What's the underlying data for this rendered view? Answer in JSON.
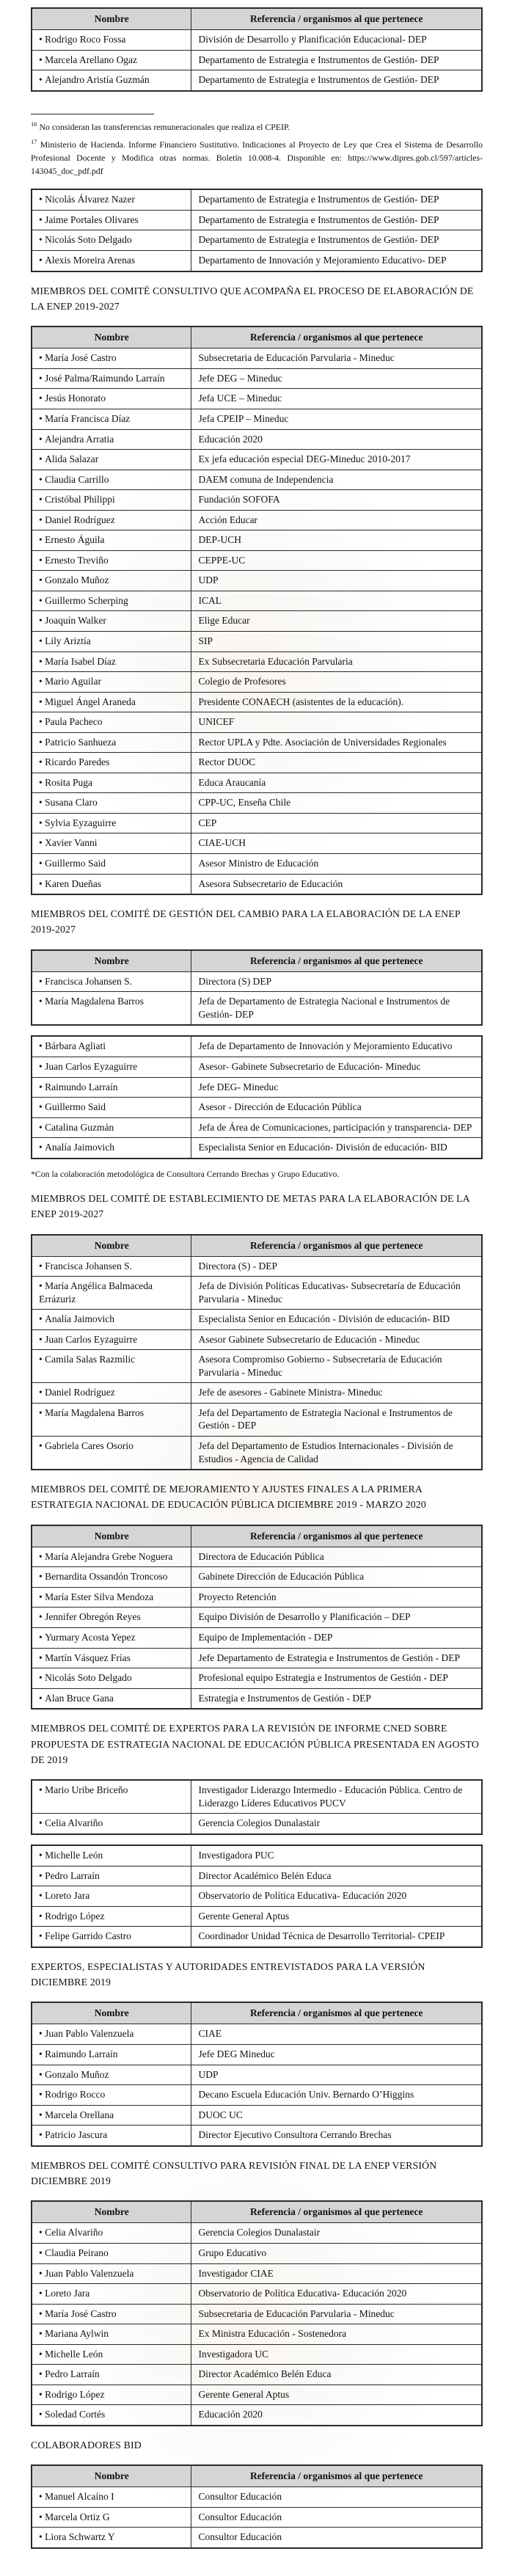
{
  "table_columns": [
    "Nombre",
    "Referencia / organismos al que pertenece"
  ],
  "sections": [
    {
      "type": "table",
      "header": true,
      "rows": [
        {
          "name": "Rodrigo Roco Fossa",
          "ref": "División de Desarrollo y Planificación Educacional- DEP"
        },
        {
          "name": "Marcela Arellano Ogaz",
          "ref": "Departamento de Estrategia e Instrumentos de Gestión- DEP"
        },
        {
          "name": "Alejandro Aristía Guzmán",
          "ref": "Departamento de Estrategia e Instrumentos de Gestión- DEP"
        }
      ]
    },
    {
      "type": "footnotes",
      "items": [
        {
          "sup": "16",
          "text": "No consideran las transferencias remuneracionales que realiza el CPEIP."
        },
        {
          "sup": "17",
          "text": "Ministerio de Hacienda. Informe Financiero Sustitutivo. Indicaciones al Proyecto de Ley que Crea el Sistema de Desarrollo Profesional Docente y Modifica otras normas. Boletín 10.008-4. Disponible en: https://www.dipres.gob.cl/597/articles-143045_doc_pdf.pdf"
        }
      ]
    },
    {
      "type": "table",
      "header": false,
      "rows": [
        {
          "name": "Nicolás Álvarez Nazer",
          "ref": "Departamento de Estrategia e Instrumentos de Gestión- DEP"
        },
        {
          "name": "Jaime Portales Olivares",
          "ref": "Departamento de Estrategia e Instrumentos de Gestión- DEP"
        },
        {
          "name": "Nicolás Soto Delgado",
          "ref": "Departamento de Estrategia e Instrumentos de Gestión- DEP"
        },
        {
          "name": "Alexis Moreira Arenas",
          "ref": "Departamento de Innovación y Mejoramiento Educativo- DEP"
        }
      ]
    },
    {
      "type": "heading",
      "text": "MIEMBROS DEL COMITÉ CONSULTIVO QUE ACOMPAÑA EL PROCESO DE ELABORACIÓN DE LA ENEP 2019-2027"
    },
    {
      "type": "table",
      "header": true,
      "rows": [
        {
          "name": "María José Castro",
          "ref": "Subsecretaria de Educación Parvularia - Mineduc"
        },
        {
          "name": "José Palma/Raimundo Larraín",
          "ref": "Jefe DEG – Mineduc"
        },
        {
          "name": "Jesús Honorato",
          "ref": "Jefa UCE – Mineduc"
        },
        {
          "name": "María Francisca Díaz",
          "ref": "Jefa CPEIP – Mineduc"
        },
        {
          "name": "Alejandra Arratia",
          "ref": "Educación 2020"
        },
        {
          "name": "Alida Salazar",
          "ref": "Ex jefa educación especial DEG-Mineduc 2010-2017"
        },
        {
          "name": "Claudia Carrillo",
          "ref": "DAEM comuna de Independencia"
        },
        {
          "name": "Cristóbal Philippi",
          "ref": "Fundación SOFOFA"
        },
        {
          "name": "Daniel Rodríguez",
          "ref": "Acción Educar"
        },
        {
          "name": "Ernesto Águila",
          "ref": "DEP-UCH"
        },
        {
          "name": "Ernesto Treviño",
          "ref": "CEPPE-UC"
        },
        {
          "name": "Gonzalo Muñoz",
          "ref": "UDP"
        },
        {
          "name": "Guillermo Scherping",
          "ref": "ICAL"
        },
        {
          "name": "Joaquín Walker",
          "ref": "Elige Educar"
        },
        {
          "name": "Lily Ariztía",
          "ref": "SIP"
        },
        {
          "name": "María Isabel Díaz",
          "ref": "Ex Subsecretaria Educación Parvularia"
        },
        {
          "name": "Mario Aguilar",
          "ref": "Colegio de Profesores"
        },
        {
          "name": "Miguel Ángel Araneda",
          "ref": "Presidente CONAECH (asistentes de la educación)."
        },
        {
          "name": "Paula Pacheco",
          "ref": "UNICEF"
        },
        {
          "name": "Patricio Sanhueza",
          "ref": "Rector UPLA y Pdte. Asociación de Universidades Regionales"
        },
        {
          "name": "Ricardo Paredes",
          "ref": "Rector DUOC"
        },
        {
          "name": "Rosita Puga",
          "ref": "Educa Araucanía"
        },
        {
          "name": "Susana Claro",
          "ref": "CPP-UC, Enseña Chile"
        },
        {
          "name": "Sylvia Eyzaguirre",
          "ref": "CEP"
        },
        {
          "name": "Xavier Vanni",
          "ref": "CIAE-UCH"
        },
        {
          "name": "Guillermo Said",
          "ref": "Asesor Ministro de Educación"
        },
        {
          "name": "Karen Dueñas",
          "ref": "Asesora Subsecretario de Educación"
        }
      ]
    },
    {
      "type": "heading",
      "text": "MIEMBROS DEL COMITÉ DE GESTIÓN DEL CAMBIO PARA LA ELABORACIÓN DE LA ENEP 2019-2027"
    },
    {
      "type": "table",
      "header": true,
      "rows": [
        {
          "name": "Francisca Johansen S.",
          "ref": "Directora (S) DEP"
        },
        {
          "name": "María Magdalena Barros",
          "ref": "Jefa de Departamento de Estrategia Nacional e Instrumentos de Gestión- DEP"
        }
      ]
    },
    {
      "type": "table",
      "header": false,
      "rows": [
        {
          "name": "Bárbara Agliati",
          "ref": "Jefa de Departamento de Innovación y Mejoramiento Educativo"
        },
        {
          "name": "Juan Carlos Eyzaguirre",
          "ref": "Asesor- Gabinete Subsecretario de Educación- Mineduc"
        },
        {
          "name": "Raimundo Larraín",
          "ref": "Jefe DEG- Mineduc"
        },
        {
          "name": "Guillermo Said",
          "ref": "Asesor - Dirección de Educación Pública"
        },
        {
          "name": "Catalina Guzmán",
          "ref": "Jefa de Área de Comunicaciones, participación y transparencia- DEP"
        },
        {
          "name": "Analía Jaimovich",
          "ref": "Especialista Senior en Educación- División de educación- BID"
        }
      ]
    },
    {
      "type": "note",
      "text": "*Con la colaboración metodológica de Consultora Cerrando Brechas y Grupo Educativo."
    },
    {
      "type": "heading",
      "text": "MIEMBROS DEL COMITÉ DE ESTABLECIMIENTO DE METAS PARA LA ELABORACIÓN DE LA ENEP 2019-2027"
    },
    {
      "type": "table",
      "header": true,
      "rows": [
        {
          "name": "Francisca Johansen S.",
          "ref": "Directora (S) - DEP"
        },
        {
          "name": "María Angélica Balmaceda Errázuriz",
          "ref": "Jefa de División Políticas Educativas- Subsecretaría de Educación Parvularia - Mineduc"
        },
        {
          "name": "Analía Jaimovich",
          "ref": "Especialista Senior en Educación - División de educación- BID"
        },
        {
          "name": "Juan Carlos Eyzaguirre",
          "ref": "Asesor Gabinete Subsecretario de Educación - Mineduc"
        },
        {
          "name": "Camila Salas Razmilic",
          "ref": "Asesora Compromiso Gobierno - Subsecretaría de Educación Parvularia - Mineduc"
        },
        {
          "name": "Daniel Rodríguez",
          "ref": "Jefe de asesores - Gabinete Ministra- Mineduc"
        },
        {
          "name": "María Magdalena Barros",
          "ref": "Jefa del Departamento de Estrategia Nacional e Instrumentos de Gestión - DEP"
        },
        {
          "name": "Gabriela Cares Osorio",
          "ref": "Jefa del Departamento de Estudios Internacionales - División de Estudios - Agencia de Calidad"
        }
      ]
    },
    {
      "type": "heading",
      "text": "MIEMBROS DEL COMITÉ DE MEJORAMIENTO Y AJUSTES FINALES A LA PRIMERA ESTRATEGIA NACIONAL DE EDUCACIÓN PÚBLICA DICIEMBRE 2019 - MARZO 2020"
    },
    {
      "type": "table",
      "header": true,
      "rows": [
        {
          "name": "María Alejandra Grebe Noguera",
          "ref": "Directora de Educación Pública"
        },
        {
          "name": "Bernardita Ossandón Troncoso",
          "ref": "Gabinete Dirección de Educación Pública"
        },
        {
          "name": "María Ester Silva Mendoza",
          "ref": "Proyecto Retención"
        },
        {
          "name": "Jennifer Obregón Reyes",
          "ref": "Equipo División de Desarrollo y Planificación – DEP"
        },
        {
          "name": "Yurmary Acosta Yepez",
          "ref": "Equipo de Implementación - DEP"
        },
        {
          "name": "Martín Vásquez Frías",
          "ref": "Jefe Departamento de Estrategia e Instrumentos de Gestión - DEP"
        },
        {
          "name": "Nicolás Soto Delgado",
          "ref": "Profesional equipo Estrategia e Instrumentos de Gestión - DEP"
        },
        {
          "name": "Alan Bruce Gana",
          "ref": "Estrategia e Instrumentos de Gestión - DEP"
        }
      ]
    },
    {
      "type": "heading",
      "text": "MIEMBROS DEL COMITÉ DE EXPERTOS PARA LA REVISIÓN DE INFORME CNED SOBRE PROPUESTA DE ESTRATEGIA NACIONAL DE EDUCACIÓN PÚBLICA PRESENTADA EN AGOSTO DE 2019"
    },
    {
      "type": "table",
      "header": false,
      "rows": [
        {
          "name": "Mario Uribe Briceño",
          "ref": "Investigador Liderazgo Intermedio - Educación Pública. Centro de Liderazgo Líderes Educativos PUCV"
        },
        {
          "name": "Celia Alvariño",
          "ref": "Gerencia Colegios Dunalastair"
        }
      ]
    },
    {
      "type": "table",
      "header": false,
      "rows": [
        {
          "name": "Michelle León",
          "ref": "Investigadora PUC"
        },
        {
          "name": "Pedro Larraín",
          "ref": "Director Académico Belén Educa"
        },
        {
          "name": "Loreto Jara",
          "ref": "Observatorio de Política Educativa- Educación 2020"
        },
        {
          "name": "Rodrigo López",
          "ref": "Gerente General Aptus"
        },
        {
          "name": "Felipe Garrido Castro",
          "ref": "Coordinador Unidad Técnica de Desarrollo Territorial- CPEIP"
        }
      ]
    },
    {
      "type": "heading",
      "text": "EXPERTOS, ESPECIALISTAS Y AUTORIDADES ENTREVISTADOS PARA LA VERSIÓN DICIEMBRE 2019"
    },
    {
      "type": "table",
      "header": true,
      "rows": [
        {
          "name": "Juan Pablo Valenzuela",
          "ref": "CIAE"
        },
        {
          "name": "Raimundo Larraín",
          "ref": "Jefe DEG Mineduc"
        },
        {
          "name": "Gonzalo Muñoz",
          "ref": "UDP"
        },
        {
          "name": "Rodrigo Rocco",
          "ref": "Decano Escuela Educación Univ. Bernardo O’Higgins"
        },
        {
          "name": "Marcela Orellana",
          "ref": "DUOC UC"
        },
        {
          "name": "Patricio Jascura",
          "ref": "Director Ejecutivo Consultora Cerrando Brechas"
        }
      ]
    },
    {
      "type": "heading",
      "text": "MIEMBROS DEL COMITÉ CONSULTIVO PARA REVISIÓN FINAL DE LA ENEP VERSIÓN DICIEMBRE 2019"
    },
    {
      "type": "table",
      "header": true,
      "rows": [
        {
          "name": "Celia Alvariño",
          "ref": "Gerencia Colegios Dunalastair"
        },
        {
          "name": "Claudia Peirano",
          "ref": "Grupo Educativo"
        },
        {
          "name": "Juan Pablo Valenzuela",
          "ref": "Investigador CIAE"
        },
        {
          "name": "Loreto Jara",
          "ref": "Observatorio de Política Educativa- Educación 2020"
        },
        {
          "name": "María José Castro",
          "ref": "Subsecretaria de Educación Parvularia - Mineduc"
        },
        {
          "name": "Mariana Aylwin",
          "ref": "Ex Ministra Educación - Sostenedora"
        },
        {
          "name": "Michelle León",
          "ref": "Investigadora UC"
        },
        {
          "name": "Pedro Larraín",
          "ref": "Director Académico Belén Educa"
        },
        {
          "name": "Rodrigo López",
          "ref": "Gerente General Aptus"
        },
        {
          "name": "Soledad Cortés",
          "ref": "Educación 2020"
        }
      ]
    },
    {
      "type": "heading",
      "text": "COLABORADORES BID"
    },
    {
      "type": "table",
      "header": true,
      "rows": [
        {
          "name": "Manuel Alcaíno I",
          "ref": "Consultor Educación"
        },
        {
          "name": "Marcela Ortiz G",
          "ref": "Consultor Educación"
        },
        {
          "name": "Liora Schwartz Y",
          "ref": "Consultor Educación"
        }
      ]
    }
  ]
}
